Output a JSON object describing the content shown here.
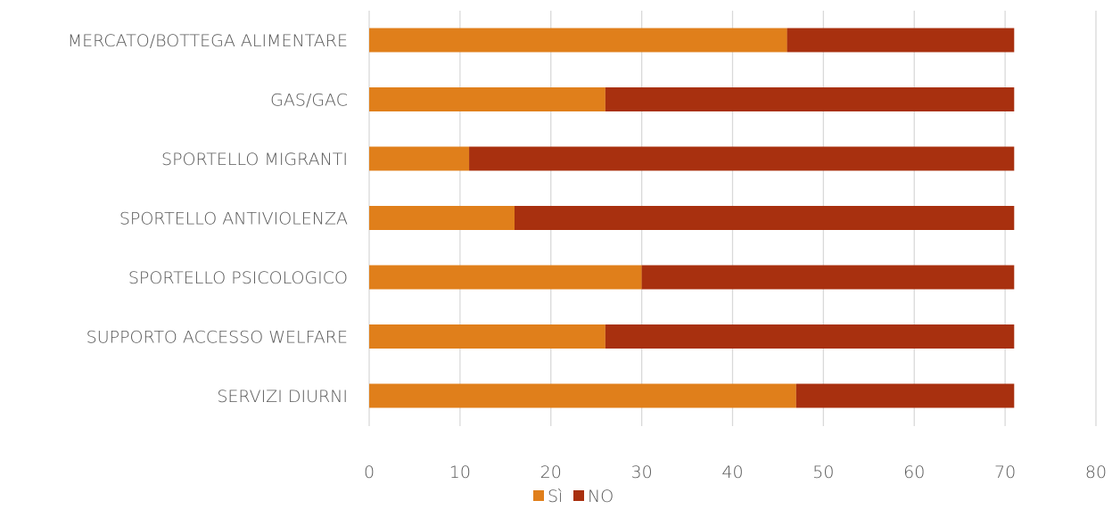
{
  "chart_data": {
    "type": "bar",
    "orientation": "horizontal",
    "stacked": true,
    "categories": [
      "MERCATO/BOTTEGA ALIMENTARE",
      "GAS/GAC",
      "SPORTELLO MIGRANTI",
      "SPORTELLO ANTIVIOLENZA",
      "SPORTELLO PSICOLOGICO",
      "SUPPORTO ACCESSO WELFARE",
      "SERVIZI DIURNI"
    ],
    "series": [
      {
        "name": "Sì",
        "color": "#e07f1b",
        "values": [
          46,
          26,
          11,
          16,
          30,
          26,
          47
        ]
      },
      {
        "name": "NO",
        "color": "#a8300f",
        "values": [
          25,
          45,
          60,
          55,
          41,
          45,
          24
        ]
      }
    ],
    "xlim": [
      0,
      80
    ],
    "xticks": [
      "0",
      "10",
      "20",
      "30",
      "40",
      "50",
      "60",
      "70",
      "80"
    ],
    "grid": "vertical",
    "legend": "bottom-center",
    "title": "",
    "xlabel": "",
    "ylabel": ""
  }
}
